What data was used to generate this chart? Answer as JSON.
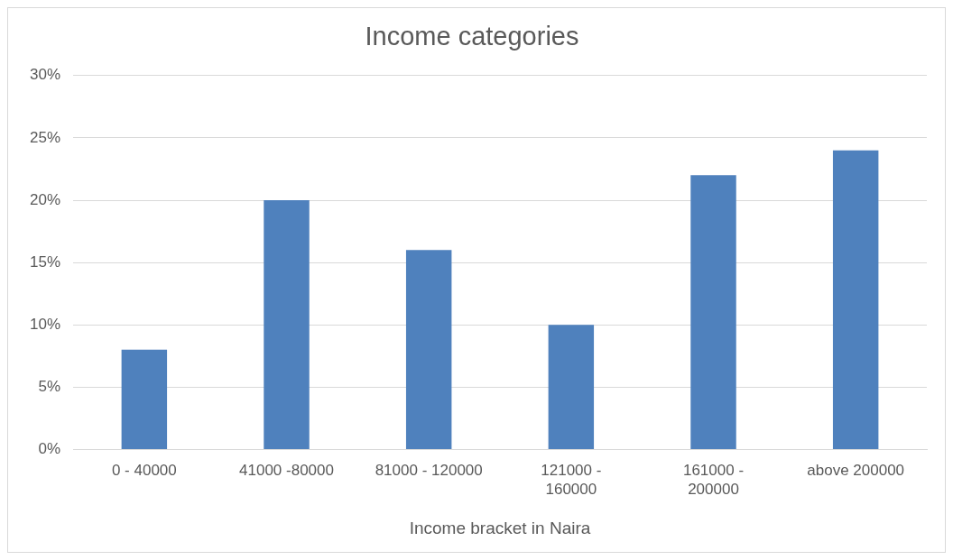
{
  "chart_data": {
    "type": "bar",
    "title": "Income categories",
    "xlabel": "Income bracket in Naira",
    "categories": [
      "0 - 40000",
      "41000 -80000",
      "81000 - 120000",
      "121000 - 160000",
      "161000 - 200000",
      "above 200000"
    ],
    "values": [
      8,
      20,
      16,
      10,
      22,
      24
    ],
    "color": "#4f81bd",
    "ylim": [
      0,
      30
    ],
    "yticks": [
      {
        "value": 0,
        "label": "0%"
      },
      {
        "value": 5,
        "label": "5%"
      },
      {
        "value": 10,
        "label": "10%"
      },
      {
        "value": 15,
        "label": "15%"
      },
      {
        "value": 20,
        "label": "20%"
      },
      {
        "value": 25,
        "label": "25%"
      },
      {
        "value": 30,
        "label": "30%"
      }
    ],
    "grid": "y",
    "legend": false
  }
}
